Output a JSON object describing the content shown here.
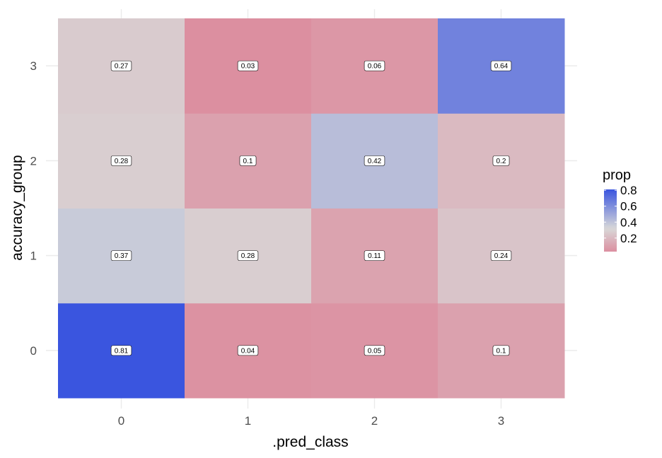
{
  "chart_data": {
    "type": "heatmap",
    "xlabel": ".pred_class",
    "ylabel": "accuracy_group",
    "x_categories": [
      "0",
      "1",
      "2",
      "3"
    ],
    "y_categories": [
      "0",
      "1",
      "2",
      "3"
    ],
    "values": [
      {
        "x": "0",
        "y": "0",
        "value": 0.81,
        "label": "0.81"
      },
      {
        "x": "1",
        "y": "0",
        "value": 0.04,
        "label": "0.04"
      },
      {
        "x": "2",
        "y": "0",
        "value": 0.05,
        "label": "0.05"
      },
      {
        "x": "3",
        "y": "0",
        "value": 0.1,
        "label": "0.1"
      },
      {
        "x": "0",
        "y": "1",
        "value": 0.37,
        "label": "0.37"
      },
      {
        "x": "1",
        "y": "1",
        "value": 0.28,
        "label": "0.28"
      },
      {
        "x": "2",
        "y": "1",
        "value": 0.11,
        "label": "0.11"
      },
      {
        "x": "3",
        "y": "1",
        "value": 0.24,
        "label": "0.24"
      },
      {
        "x": "0",
        "y": "2",
        "value": 0.28,
        "label": "0.28"
      },
      {
        "x": "1",
        "y": "2",
        "value": 0.1,
        "label": "0.1"
      },
      {
        "x": "2",
        "y": "2",
        "value": 0.42,
        "label": "0.42"
      },
      {
        "x": "3",
        "y": "2",
        "value": 0.2,
        "label": "0.2"
      },
      {
        "x": "0",
        "y": "3",
        "value": 0.27,
        "label": "0.27"
      },
      {
        "x": "1",
        "y": "3",
        "value": 0.03,
        "label": "0.03"
      },
      {
        "x": "2",
        "y": "3",
        "value": 0.06,
        "label": "0.06"
      },
      {
        "x": "3",
        "y": "3",
        "value": 0.64,
        "label": "0.64"
      }
    ],
    "legend": {
      "title": "prop",
      "position": "right",
      "breaks": [
        0.8,
        0.6,
        0.4,
        0.2
      ],
      "break_labels": [
        "0.8",
        "0.6",
        "0.4",
        "0.2"
      ],
      "range": [
        0.03,
        0.81
      ]
    },
    "color_scale": {
      "low": "#dc8fa0",
      "mid": "#d8d8d8",
      "high": "#3a55df",
      "midpoint": 0.32
    },
    "grid": true
  }
}
